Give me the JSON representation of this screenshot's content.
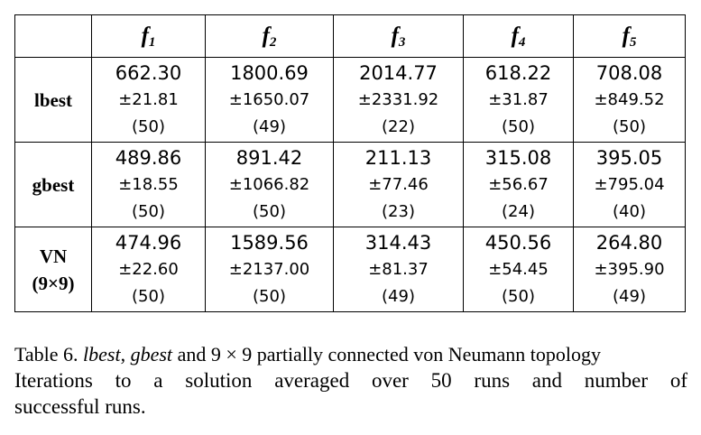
{
  "table": {
    "corner": "",
    "columns": [
      {
        "base": "f",
        "sub": "1"
      },
      {
        "base": "f",
        "sub": "2"
      },
      {
        "base": "f",
        "sub": "3"
      },
      {
        "base": "f",
        "sub": "4"
      },
      {
        "base": "f",
        "sub": "5"
      }
    ],
    "rows": [
      {
        "label_line1": "lbest",
        "label_line2": "",
        "cells": [
          {
            "mean": "662.30",
            "sd": "±21.81",
            "success": "(50)"
          },
          {
            "mean": "1800.69",
            "sd": "±1650.07",
            "success": "(49)"
          },
          {
            "mean": "2014.77",
            "sd": "±2331.92",
            "success": "(22)"
          },
          {
            "mean": "618.22",
            "sd": "±31.87",
            "success": "(50)"
          },
          {
            "mean": "708.08",
            "sd": "±849.52",
            "success": "(50)"
          }
        ]
      },
      {
        "label_line1": "gbest",
        "label_line2": "",
        "cells": [
          {
            "mean": "489.86",
            "sd": "±18.55",
            "success": "(50)"
          },
          {
            "mean": "891.42",
            "sd": "±1066.82",
            "success": "(50)"
          },
          {
            "mean": "211.13",
            "sd": "±77.46",
            "success": "(23)"
          },
          {
            "mean": "315.08",
            "sd": "±56.67",
            "success": "(24)"
          },
          {
            "mean": "395.05",
            "sd": "±795.04",
            "success": "(40)"
          }
        ]
      },
      {
        "label_line1": "VN",
        "label_line2": "(9×9)",
        "cells": [
          {
            "mean": "474.96",
            "sd": "±22.60",
            "success": "(50)"
          },
          {
            "mean": "1589.56",
            "sd": "±2137.00",
            "success": "(50)"
          },
          {
            "mean": "314.43",
            "sd": "±81.37",
            "success": "(49)"
          },
          {
            "mean": "450.56",
            "sd": "±54.45",
            "success": "(50)"
          },
          {
            "mean": "264.80",
            "sd": "±395.90",
            "success": "(49)"
          }
        ]
      }
    ]
  },
  "caption": {
    "prefix": "Table 6. ",
    "lbest": "lbest",
    "sep1": ", ",
    "gbest": "gbest",
    "rest_line1": " and 9 × 9 partially connected von Neumann topology",
    "line2": "Iterations to a solution averaged over 50 runs and number of",
    "line3": "successful runs."
  }
}
